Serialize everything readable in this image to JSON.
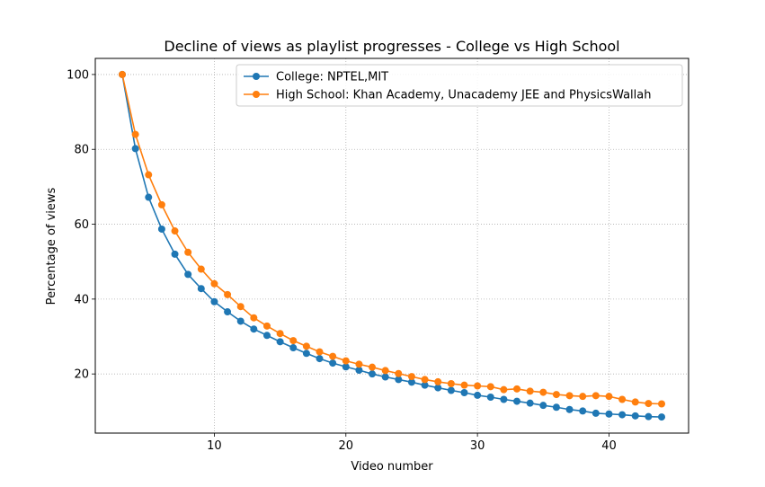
{
  "chart_data": {
    "type": "line",
    "title": "Decline of views as playlist progresses - College vs High School",
    "xlabel": "Video number",
    "ylabel": "Percentage of views",
    "xlim": [
      0.95,
      46.05
    ],
    "ylim": [
      4.2,
      104.3
    ],
    "xticks": [
      10,
      20,
      30,
      40
    ],
    "yticks": [
      20,
      40,
      60,
      80,
      100
    ],
    "grid": true,
    "legend_position": "top-right",
    "x": [
      3,
      4,
      5,
      6,
      7,
      8,
      9,
      10,
      11,
      12,
      13,
      14,
      15,
      16,
      17,
      18,
      19,
      20,
      21,
      22,
      23,
      24,
      25,
      26,
      27,
      28,
      29,
      30,
      31,
      32,
      33,
      34,
      35,
      36,
      37,
      38,
      39,
      40,
      41,
      42,
      43,
      44
    ],
    "series": [
      {
        "name": "College: NPTEL,MIT",
        "color": "#1f77b4",
        "values": [
          100,
          80.2,
          67.2,
          58.7,
          52,
          46.6,
          42.8,
          39.3,
          36.6,
          34.1,
          32,
          30.3,
          28.6,
          27,
          25.5,
          24.1,
          22.9,
          21.9,
          21,
          20,
          19.2,
          18.5,
          17.8,
          17,
          16.3,
          15.6,
          15,
          14.3,
          13.8,
          13.2,
          12.7,
          12.2,
          11.6,
          11.1,
          10.5,
          10.1,
          9.5,
          9.3,
          9.1,
          8.8,
          8.6,
          8.5
        ]
      },
      {
        "name": "High School: Khan Academy, Unacademy JEE and PhysicsWallah",
        "color": "#ff7f0e",
        "values": [
          100,
          84,
          73.2,
          65.2,
          58.2,
          52.5,
          48,
          44.1,
          41.2,
          38,
          35,
          32.8,
          30.8,
          28.9,
          27.4,
          25.9,
          24.7,
          23.5,
          22.6,
          21.8,
          20.9,
          20.1,
          19.3,
          18.5,
          17.9,
          17.4,
          17,
          16.8,
          16.6,
          15.8,
          16,
          15.4,
          15.1,
          14.5,
          14.2,
          14,
          14.2,
          14,
          13.2,
          12.5,
          12.1,
          12
        ]
      }
    ]
  }
}
